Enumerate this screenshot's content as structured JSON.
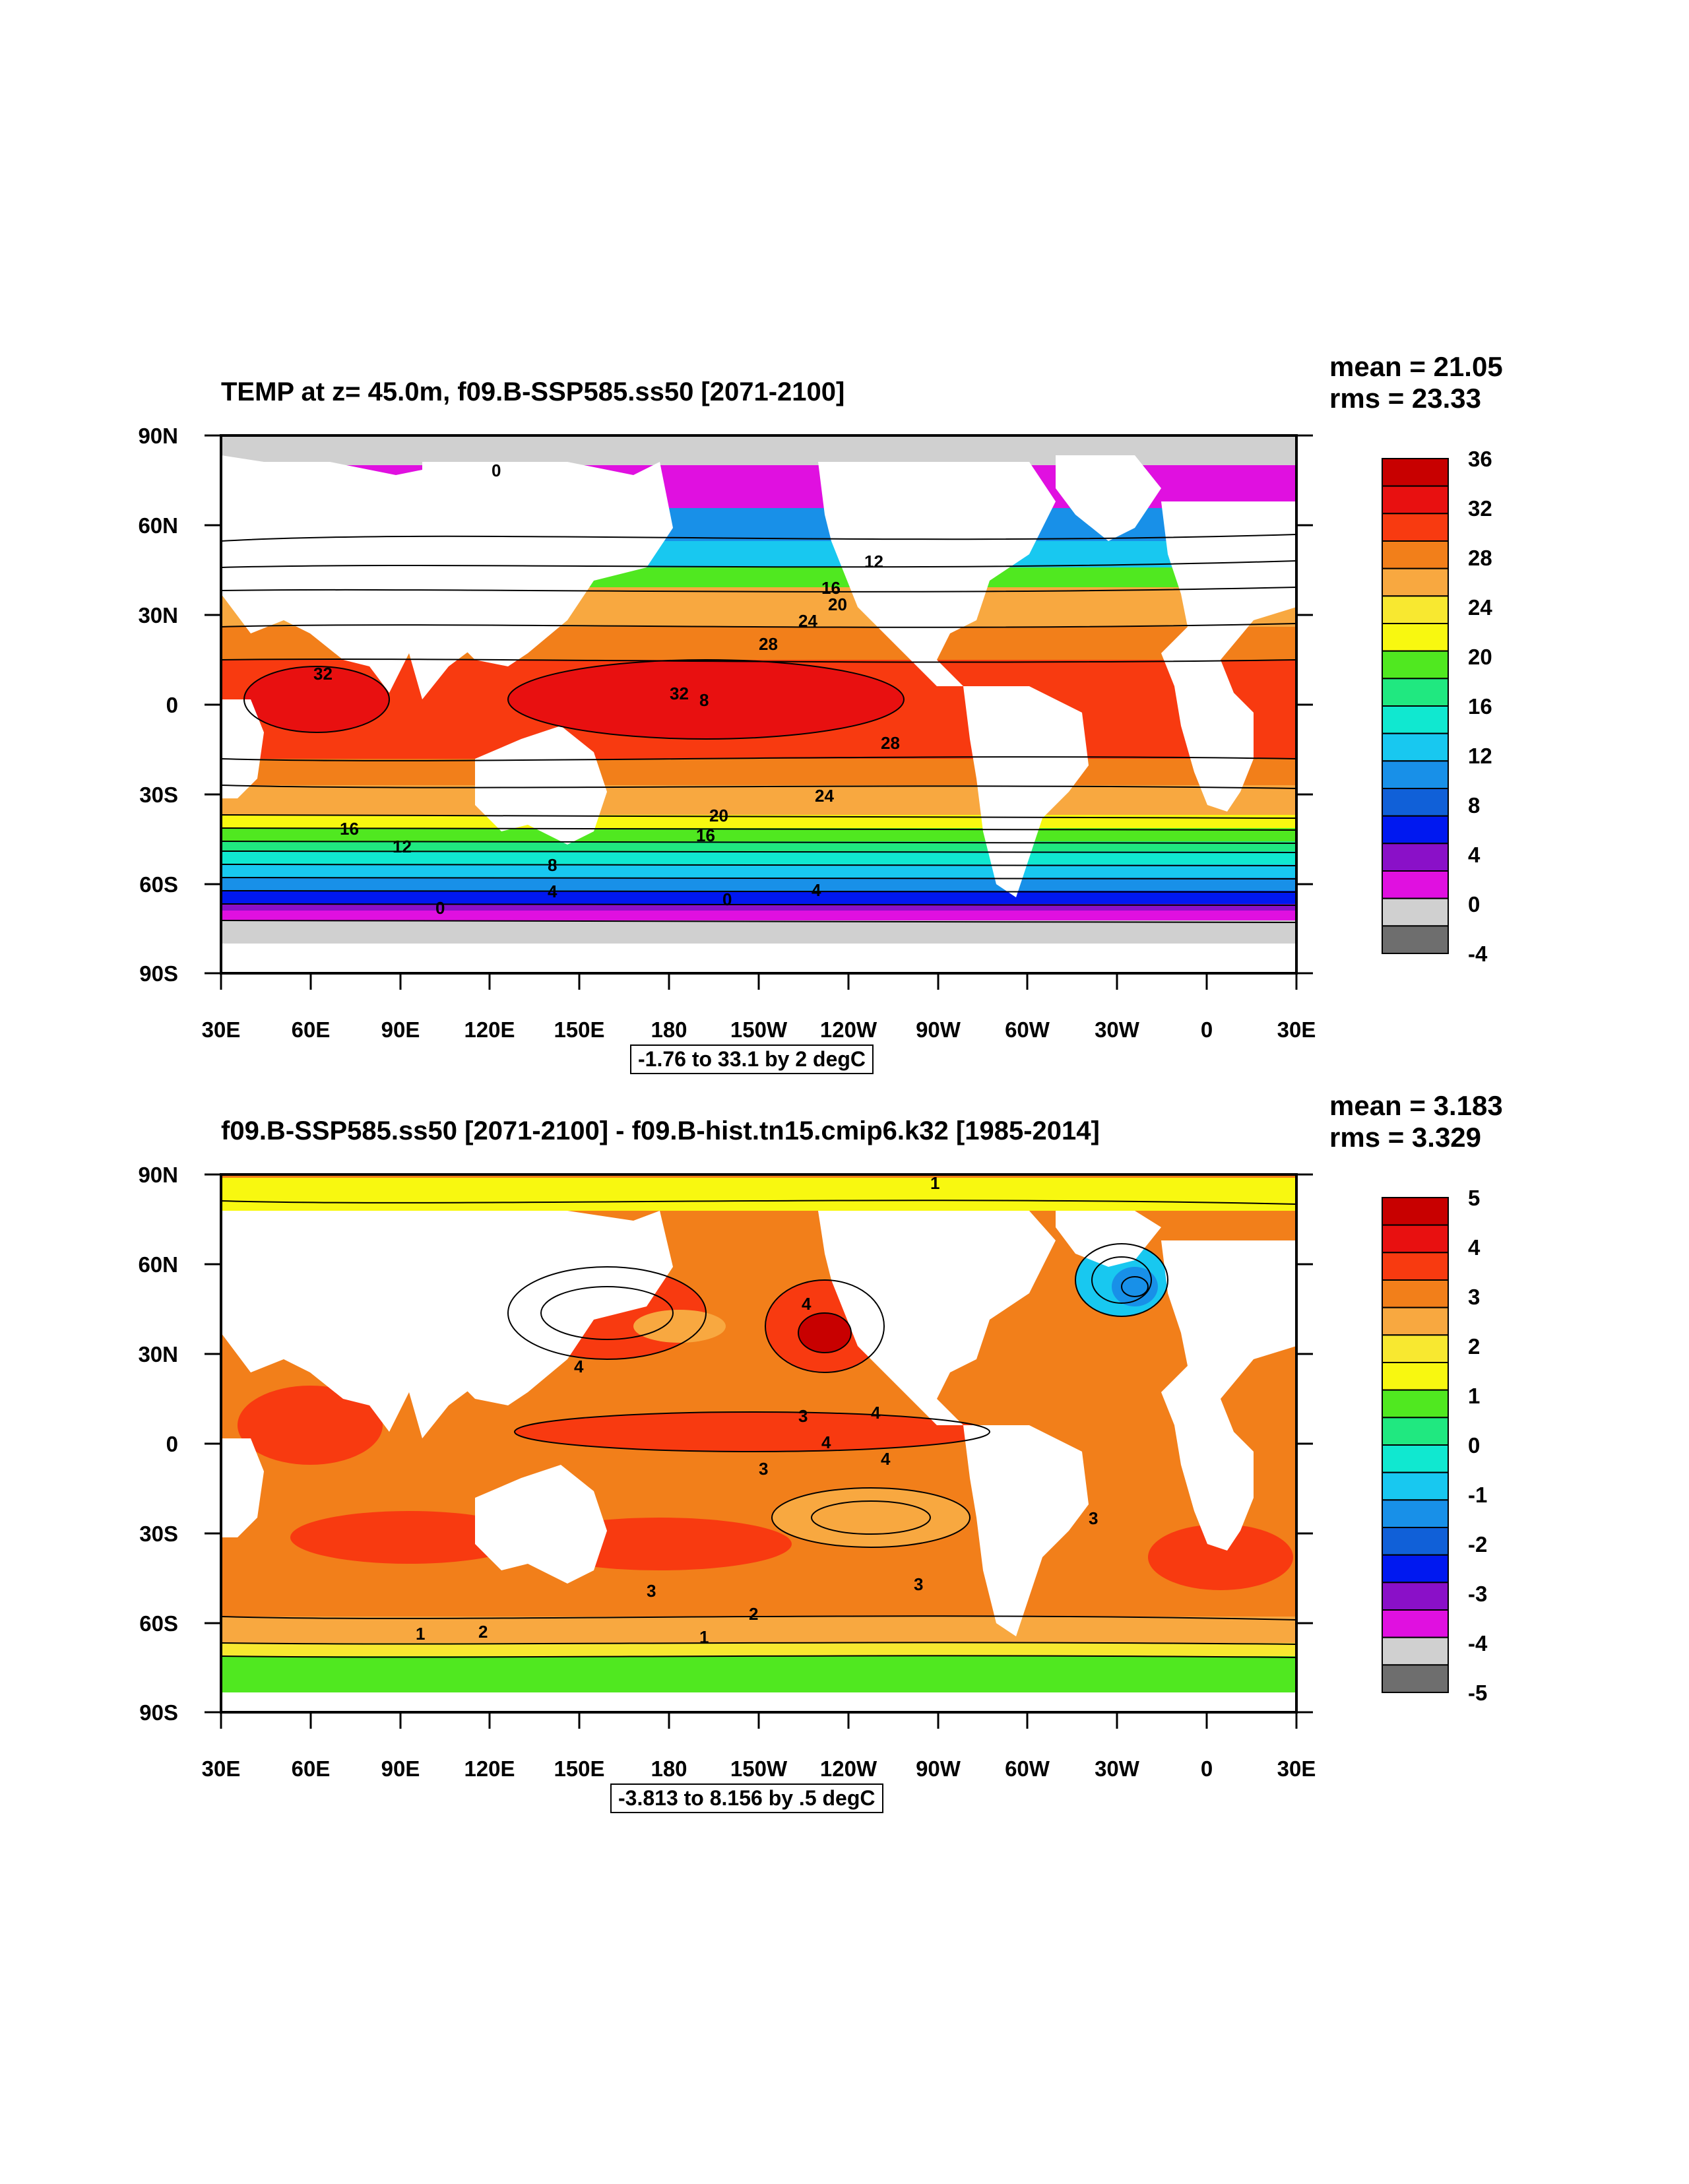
{
  "panels": [
    {
      "title": "TEMP at z=  45.0m, f09.B-SSP585.ss50 [2071-2100]",
      "mean": "mean = 21.05",
      "rms": "rms = 23.33",
      "info": "-1.76 to 33.1 by 2 degC",
      "lat_labels": [
        "90N",
        "60N",
        "30N",
        "0",
        "30S",
        "60S",
        "90S"
      ],
      "lon_labels": [
        "30E",
        "60E",
        "90E",
        "120E",
        "150E",
        "180",
        "150W",
        "120W",
        "90W",
        "60W",
        "30W",
        "0",
        "30E"
      ],
      "colorbar": {
        "labels": [
          "36",
          "32",
          "28",
          "24",
          "20",
          "16",
          "12",
          "8",
          "4",
          "0",
          "-4"
        ],
        "colors": [
          "#c80000",
          "#e81010",
          "#f83a10",
          "#f27f1a",
          "#f8a840",
          "#f8e830",
          "#f8f810",
          "#50e820",
          "#20e880",
          "#10e8d0",
          "#18c8f0",
          "#1890e8",
          "#1060d8",
          "#0018f0",
          "#8a10c8",
          "#e010e0",
          "#d0d0d0",
          "#6e6e6e"
        ]
      },
      "contour_labels": [
        "0",
        "32",
        "28",
        "24",
        "20",
        "16",
        "12",
        "8",
        "4",
        "0",
        "32",
        "28",
        "24",
        "16",
        "20",
        "16",
        "12",
        "8",
        "4",
        "0"
      ]
    },
    {
      "title": "f09.B-SSP585.ss50 [2071-2100] - f09.B-hist.tn15.cmip6.k32 [1985-2014]",
      "mean": "mean = 3.183",
      "rms": "rms = 3.329",
      "info": "-3.813 to 8.156 by .5 degC",
      "lat_labels": [
        "90N",
        "60N",
        "30N",
        "0",
        "30S",
        "60S",
        "90S"
      ],
      "lon_labels": [
        "30E",
        "60E",
        "90E",
        "120E",
        "150E",
        "180",
        "150W",
        "120W",
        "90W",
        "60W",
        "30W",
        "0",
        "30E"
      ],
      "colorbar": {
        "labels": [
          "5",
          "4",
          "3",
          "2",
          "1",
          "0",
          "-1",
          "-2",
          "-3",
          "-4",
          "-5"
        ],
        "colors": [
          "#c80000",
          "#e81010",
          "#f83a10",
          "#f27f1a",
          "#f8a840",
          "#f8e830",
          "#f8f810",
          "#50e820",
          "#20e880",
          "#10e8d0",
          "#18c8f0",
          "#1890e8",
          "#1060d8",
          "#0018f0",
          "#8a10c8",
          "#e010e0",
          "#d0d0d0",
          "#6e6e6e"
        ]
      },
      "contour_labels": [
        "1",
        "4",
        "4",
        "3",
        "4",
        "4",
        "3",
        "4",
        "3",
        "3",
        "3",
        "2",
        "1",
        "1",
        "2"
      ]
    }
  ],
  "map_colors": {
    "land": "#ffffff",
    "ice": "#d0d0d0"
  }
}
